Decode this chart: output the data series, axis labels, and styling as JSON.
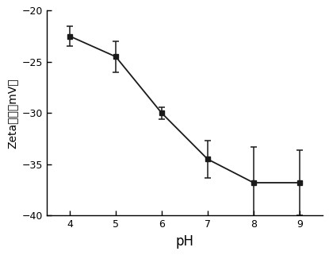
{
  "x": [
    4,
    5,
    6,
    7,
    8,
    9
  ],
  "y": [
    -22.5,
    -24.5,
    -30.0,
    -34.5,
    -36.8,
    -36.8
  ],
  "yerr": [
    1.0,
    1.5,
    0.6,
    1.8,
    3.5,
    3.2
  ],
  "xlabel": "pH",
  "ylabel_part1": "Zeta",
  "ylabel_part2": "电势（mV）",
  "xlim": [
    3.5,
    9.5
  ],
  "ylim": [
    -40,
    -20
  ],
  "yticks": [
    -40,
    -35,
    -30,
    -25,
    -20
  ],
  "xticks": [
    4,
    5,
    6,
    7,
    8,
    9
  ],
  "line_color": "#1a1a1a",
  "marker": "s",
  "marker_color": "#1a1a1a",
  "marker_size": 5,
  "line_width": 1.3,
  "background_color": "#ffffff",
  "capsize": 3,
  "elinewidth": 1.1,
  "xlabel_fontsize": 12,
  "ylabel_fontsize": 10,
  "tick_labelsize": 9
}
